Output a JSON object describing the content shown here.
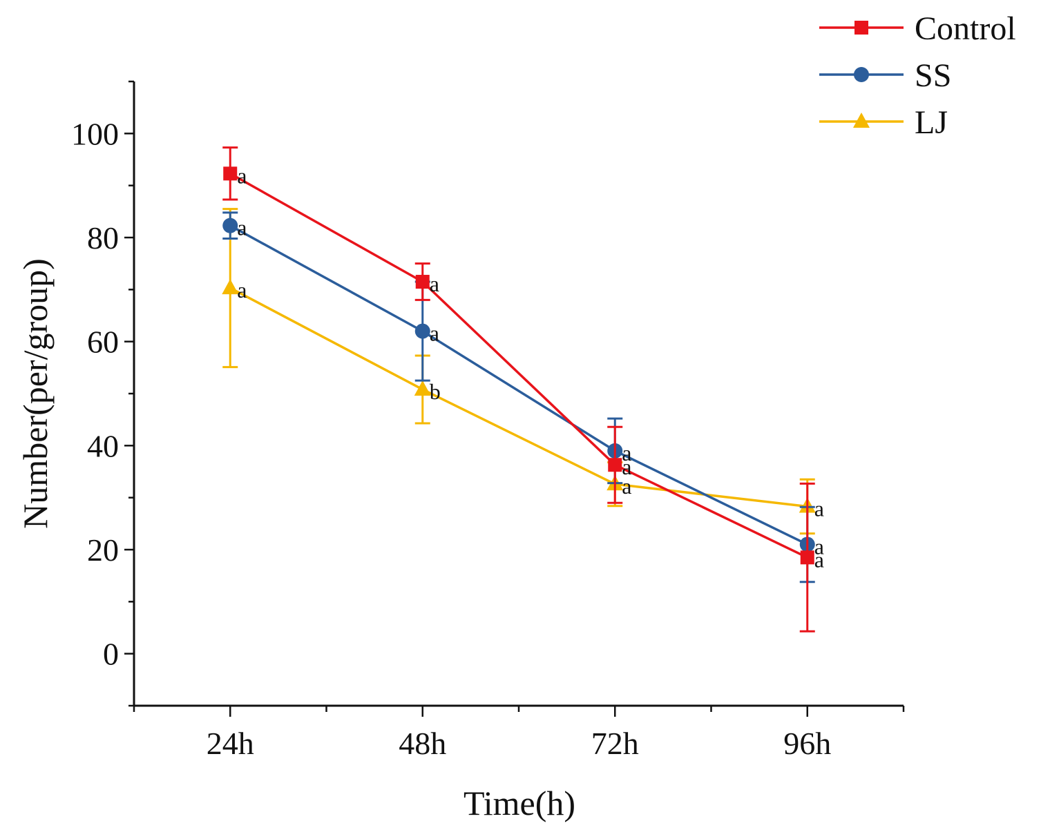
{
  "chart_data": {
    "type": "line",
    "title": "",
    "xlabel": "Time(h)",
    "ylabel": "Number(per/group)",
    "categories": [
      "24h",
      "48h",
      "72h",
      "96h"
    ],
    "ylim": [
      -10,
      110
    ],
    "yticks": [
      0,
      20,
      40,
      60,
      80,
      100
    ],
    "legend_position": "top-right",
    "series": [
      {
        "name": "Control",
        "color": "#e8141b",
        "marker": "square",
        "values": [
          92.3,
          71.5,
          36.3,
          18.5
        ],
        "errors": [
          5.0,
          3.5,
          7.3,
          14.2
        ],
        "labels": [
          "a",
          "a",
          "a",
          "a"
        ]
      },
      {
        "name": "SS",
        "color": "#2b5d9b",
        "marker": "circle",
        "values": [
          82.3,
          62.0,
          39.0,
          21.0
        ],
        "errors": [
          2.5,
          9.5,
          6.2,
          7.2
        ],
        "labels": [
          "a",
          "a",
          "a",
          "a"
        ]
      },
      {
        "name": "LJ",
        "color": "#f5b800",
        "marker": "triangle",
        "values": [
          70.3,
          50.8,
          32.6,
          28.3
        ],
        "errors": [
          15.2,
          6.5,
          4.2,
          5.2
        ],
        "labels": [
          "a",
          "b",
          "a",
          "a"
        ]
      }
    ]
  }
}
